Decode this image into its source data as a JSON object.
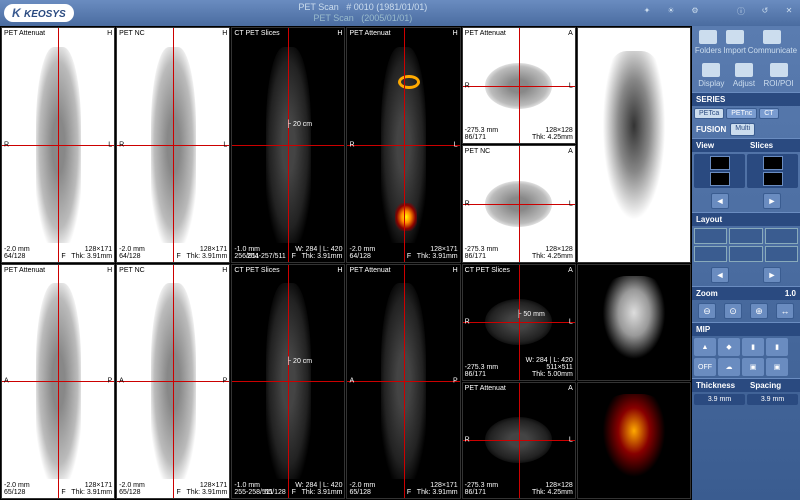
{
  "app": {
    "brand": "KEOSYS"
  },
  "header": {
    "line1_left": "PET Scan",
    "line1_right": "# 0010 (1981/01/01)",
    "line2_left": "PET Scan",
    "line2_right": "(2005/01/01)"
  },
  "top_icons": [
    "sparkle-icon",
    "light-icon",
    "bug-icon",
    "help-icon",
    "refresh-icon",
    "close-icon"
  ],
  "panes": {
    "r1c1": {
      "tl": "PET Attenuat",
      "tr": "H",
      "bl": "-2.0 mm\n64/128",
      "br": "128×171\nF   Thk: 3.91mm",
      "l": "R",
      "r": "L",
      "inv": true
    },
    "r1c2": {
      "tl": "PET NC",
      "tr": "H",
      "bl": "-2.0 mm\n64/128",
      "br": "128×171\nF   Thk: 3.91mm",
      "l": "R",
      "r": "L",
      "inv": true
    },
    "r1c3": {
      "tl": "CT PET Slices",
      "tr": "H",
      "bl": "-1.0 mm\n256/511",
      "br": "W: 284 | L: 420\n254-257/511   F   Thk: 3.91mm",
      "l": "",
      "r": "",
      "inv": false,
      "scale": "20 cm"
    },
    "r1c4": {
      "tl": "PET Attenuat",
      "tr": "H",
      "bl": "-2.0 mm\n64/128",
      "br": "128×171\nF   Thk: 3.91mm",
      "l": "R",
      "r": "L",
      "inv": false
    },
    "r1c5a": {
      "tl": "PET Attenuat",
      "tr": "A",
      "bl": "-275.3 mm\n86/171",
      "br": "128×128\nThk: 4.25mm",
      "l": "R",
      "r": "L",
      "inv": true
    },
    "r1c5b": {
      "tl": "PET NC",
      "tr": "A",
      "bl": "-275.3 mm\n86/171",
      "br": "128×128\nThk: 4.25mm",
      "l": "R",
      "r": "L",
      "inv": true
    },
    "r1c6": {
      "tl": "",
      "tr": "",
      "bl": "",
      "br": "",
      "inv": true,
      "mip": true
    },
    "r2c1": {
      "tl": "PET Attenuat",
      "tr": "H",
      "bl": "-2.0 mm\n65/128",
      "br": "128×171\nF   Thk: 3.91mm",
      "l": "A",
      "r": "P",
      "inv": true
    },
    "r2c2": {
      "tl": "PET NC",
      "tr": "H",
      "bl": "-2.0 mm\n65/128",
      "br": "128×171\nF   Thk: 3.91mm",
      "l": "A",
      "r": "P",
      "inv": true
    },
    "r2c3": {
      "tl": "CT PET Slices",
      "tr": "H",
      "bl": "-1.0 mm\n255-258/511",
      "br": "W: 284 | L: 420\n65/128   F   Thk: 3.91mm",
      "l": "",
      "r": "",
      "inv": false,
      "scale": "20 cm"
    },
    "r2c4": {
      "tl": "PET Attenuat",
      "tr": "H",
      "bl": "-2.0 mm\n65/128",
      "br": "128×171\nF   Thk: 3.91mm",
      "l": "A",
      "r": "P",
      "inv": false
    },
    "r2c5a": {
      "tl": "CT PET Slices",
      "tr": "A",
      "bl": "-275.3 mm\n86/171",
      "br": "W: 284 | L: 420\n511×511\nThk: 5.00mm",
      "l": "R",
      "r": "L",
      "inv": false,
      "scale": "50 mm"
    },
    "r2c5b": {
      "tl": "PET Attenuat",
      "tr": "A",
      "bl": "-275.3 mm\n86/171",
      "br": "128×128\nThk: 4.25mm",
      "l": "R",
      "r": "L",
      "inv": false
    },
    "r2c6a": {
      "inv": false,
      "mip": true,
      "skel": true
    },
    "r2c6b": {
      "inv": false,
      "mip": true,
      "hot": true
    }
  },
  "sidebar": {
    "tools1": [
      {
        "icon": "folders-icon",
        "label": "Folders"
      },
      {
        "icon": "import-icon",
        "label": "Import"
      },
      {
        "icon": "communicate-icon",
        "label": "Communicate"
      }
    ],
    "tools2": [
      {
        "icon": "display-icon",
        "label": "Display"
      },
      {
        "icon": "adjust-icon",
        "label": "Adjust"
      },
      {
        "icon": "roi-icon",
        "label": "ROI/POI"
      }
    ],
    "series": {
      "header": "SERIES",
      "buttons": [
        "PETca",
        "PETnc",
        "CT"
      ]
    },
    "fusion": {
      "header": "FUSION",
      "buttons": [
        "Multi"
      ]
    },
    "view": {
      "header": "View",
      "header2": "Slices"
    },
    "layout": {
      "header": "Layout"
    },
    "zoom": {
      "header": "Zoom",
      "value": "1.0"
    },
    "mip": {
      "header": "MIP",
      "off": "OFF"
    },
    "thickness": {
      "h1": "Thickness",
      "h2": "Spacing",
      "v1": "3.9 mm",
      "v2": "3.9 mm"
    }
  }
}
